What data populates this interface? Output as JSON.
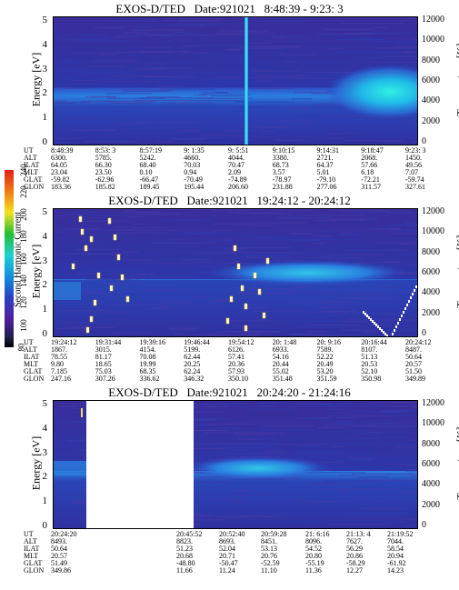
{
  "colorbar": {
    "label": "Second Harmonic Current",
    "ticks": [
      "240",
      "220",
      "200",
      "180",
      "160",
      "140",
      "120",
      "100",
      "80"
    ],
    "colors": [
      "#e0201a",
      "#f07a10",
      "#f5e020",
      "#20c030",
      "#20d0d0",
      "#1090e0",
      "#2a40c0",
      "#5020a0",
      "#202050",
      "#000000"
    ]
  },
  "axes": {
    "left_label": "Energy [eV]",
    "right_label": "Temperature [K]",
    "left_ticks": [
      "5",
      "4",
      "3",
      "2",
      "1",
      "0"
    ],
    "right_ticks": [
      "12000",
      "10000",
      "8000",
      "6000",
      "4000",
      "2000",
      "0"
    ]
  },
  "eph_labels": [
    "UT",
    "ALT",
    "ILAT",
    "MLT",
    "GLAT",
    "GLON"
  ],
  "chart_data": [
    {
      "type": "heatmap",
      "title": "EXOS-D/TED   Date:921021   8:48:39 - 9:23: 3",
      "ylabel": "Energy [eV]",
      "y2label": "Temperature [K]",
      "ylim": [
        0,
        5
      ],
      "y2lim": [
        0,
        12000
      ],
      "columns": [
        [
          "8:48:39",
          "6300.",
          "64.05",
          "23.04",
          "-59.82",
          "183.36"
        ],
        [
          "8:53: 3",
          "5785.",
          "66.30",
          "23.50",
          "-62.96",
          "185.82"
        ],
        [
          "8:57:19",
          "5242.",
          "68.40",
          "0.10",
          "-66.47",
          "189.45"
        ],
        [
          "9: 1:35",
          "4660.",
          "70.03",
          "0.94",
          "-70.49",
          "195.44"
        ],
        [
          "9: 5:51",
          "4044.",
          "70.47",
          "2.09",
          "-74.89",
          "206.60"
        ],
        [
          "9:10:15",
          "3380.",
          "68.73",
          "3.57",
          "-78.97",
          "231.88"
        ],
        [
          "9:14:31",
          "2721.",
          "64.37",
          "5.01",
          "-79.10",
          "277.06"
        ],
        [
          "9:18:47",
          "2068.",
          "57.66",
          "6.18",
          "-72.21",
          "311.57"
        ],
        [
          "9:23: 3",
          "1450.",
          "49.56",
          "7.07",
          "-59.74",
          "327.61"
        ]
      ]
    },
    {
      "type": "heatmap",
      "title": "EXOS-D/TED   Date:921021   19:24:12 - 20:24:12",
      "ylabel": "Energy [eV]",
      "y2label": "Temperature [K]",
      "ylim": [
        0,
        5
      ],
      "y2lim": [
        0,
        12000
      ],
      "columns": [
        [
          "19:24:12",
          "1867.",
          "78.55",
          "9.80",
          "7.185",
          "247.16"
        ],
        [
          "19:31:44",
          "3015.",
          "81.17",
          "18.65",
          "75.03",
          "307.26"
        ],
        [
          "19:39:16",
          "4154.",
          "70.08",
          "19.99",
          "68.35",
          "336.62"
        ],
        [
          "19:46:44",
          "5199.",
          "62.44",
          "20.25",
          "62.24",
          "346.32"
        ],
        [
          "19:54:12",
          "6126.",
          "57.41",
          "20.36",
          "57.93",
          "350.10"
        ],
        [
          "20: 1:48",
          "6933.",
          "54.16",
          "20.44",
          "55.02",
          "351.48"
        ],
        [
          "20: 9:16",
          "7589.",
          "52.22",
          "20.49",
          "53.20",
          "351.59"
        ],
        [
          "20:16:44",
          "8107.",
          "51.13",
          "20.53",
          "52.10",
          "350.98"
        ],
        [
          "20:24:12",
          "8487.",
          "50.64",
          "20.57",
          "51.50",
          "349.89"
        ]
      ]
    },
    {
      "type": "heatmap",
      "title": "EXOS-D/TED   Date:921021   20:24:20 - 21:24:16",
      "ylabel": "Energy [eV]",
      "y2label": "Temperature [K]",
      "ylim": [
        0,
        5
      ],
      "y2lim": [
        0,
        12000
      ],
      "columns": [
        [
          "20:24:20",
          "8493.",
          "50.64",
          "20.57",
          "51.49",
          "349.86"
        ],
        [
          "20:45:52",
          "8823.",
          "51.23",
          "20.68",
          "-48.80",
          "11.66"
        ],
        [
          "20:52:40",
          "8693.",
          "52.04",
          "20.71",
          "-50.47",
          "11.24"
        ],
        [
          "20:59:28",
          "8451.",
          "53.13",
          "20.76",
          "-52.59",
          "11.10"
        ],
        [
          "21: 6:16",
          "8096.",
          "54.52",
          "20.80",
          "-55.19",
          "11.36"
        ],
        [
          "21:13: 4",
          "7627.",
          "56.29",
          "20.86",
          "-58.29",
          "12.27"
        ],
        [
          "21:19:52",
          "7044.",
          "58.54",
          "20.94",
          "-61.92",
          "14.23"
        ]
      ]
    }
  ]
}
